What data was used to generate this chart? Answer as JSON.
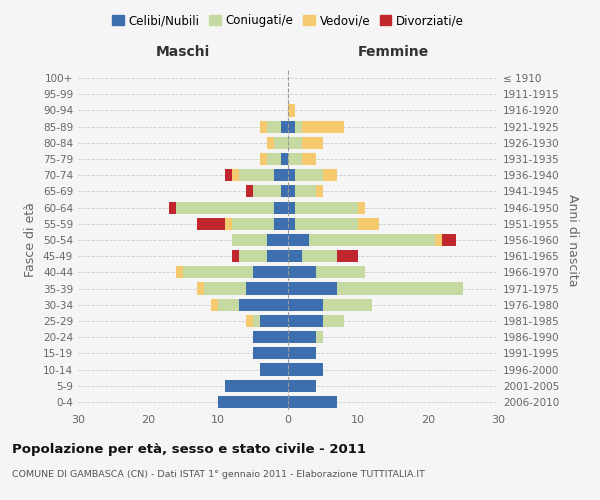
{
  "age_groups": [
    "0-4",
    "5-9",
    "10-14",
    "15-19",
    "20-24",
    "25-29",
    "30-34",
    "35-39",
    "40-44",
    "45-49",
    "50-54",
    "55-59",
    "60-64",
    "65-69",
    "70-74",
    "75-79",
    "80-84",
    "85-89",
    "90-94",
    "95-99",
    "100+"
  ],
  "birth_years": [
    "2006-2010",
    "2001-2005",
    "1996-2000",
    "1991-1995",
    "1986-1990",
    "1981-1985",
    "1976-1980",
    "1971-1975",
    "1966-1970",
    "1961-1965",
    "1956-1960",
    "1951-1955",
    "1946-1950",
    "1941-1945",
    "1936-1940",
    "1931-1935",
    "1926-1930",
    "1921-1925",
    "1916-1920",
    "1911-1915",
    "≤ 1910"
  ],
  "male": {
    "celibi": [
      10,
      9,
      4,
      5,
      5,
      4,
      7,
      6,
      5,
      3,
      3,
      2,
      2,
      1,
      2,
      1,
      0,
      1,
      0,
      0,
      0
    ],
    "coniugati": [
      0,
      0,
      0,
      0,
      0,
      1,
      3,
      6,
      10,
      4,
      5,
      6,
      14,
      4,
      5,
      2,
      2,
      2,
      0,
      0,
      0
    ],
    "vedovi": [
      0,
      0,
      0,
      0,
      0,
      1,
      1,
      1,
      1,
      0,
      0,
      1,
      0,
      0,
      1,
      1,
      1,
      1,
      0,
      0,
      0
    ],
    "divorziati": [
      0,
      0,
      0,
      0,
      0,
      0,
      0,
      0,
      0,
      1,
      0,
      4,
      1,
      1,
      1,
      0,
      0,
      0,
      0,
      0,
      0
    ]
  },
  "female": {
    "nubili": [
      7,
      4,
      5,
      4,
      4,
      5,
      5,
      7,
      4,
      2,
      3,
      1,
      1,
      1,
      1,
      0,
      0,
      1,
      0,
      0,
      0
    ],
    "coniugate": [
      0,
      0,
      0,
      0,
      1,
      3,
      7,
      18,
      7,
      5,
      18,
      9,
      9,
      3,
      4,
      2,
      2,
      1,
      0,
      0,
      0
    ],
    "vedove": [
      0,
      0,
      0,
      0,
      0,
      0,
      0,
      0,
      0,
      0,
      1,
      3,
      1,
      1,
      2,
      2,
      3,
      6,
      1,
      0,
      0
    ],
    "divorziate": [
      0,
      0,
      0,
      0,
      0,
      0,
      0,
      0,
      0,
      3,
      2,
      0,
      0,
      0,
      0,
      0,
      0,
      0,
      0,
      0,
      0
    ]
  },
  "colors": {
    "celibi": "#3d6faf",
    "coniugati": "#c5d9a0",
    "vedovi": "#f5c96e",
    "divorziati": "#c0272d"
  },
  "xlim": 30,
  "title": "Popolazione per età, sesso e stato civile - 2011",
  "subtitle": "COMUNE DI GAMBASCA (CN) - Dati ISTAT 1° gennaio 2011 - Elaborazione TUTTITALIA.IT",
  "ylabel_left": "Fasce di età",
  "ylabel_right": "Anni di nascita",
  "xlabel_male": "Maschi",
  "xlabel_female": "Femmine",
  "legend_labels": [
    "Celibi/Nubili",
    "Coniugati/e",
    "Vedovi/e",
    "Divorziati/e"
  ],
  "bg_color": "#f5f5f5"
}
